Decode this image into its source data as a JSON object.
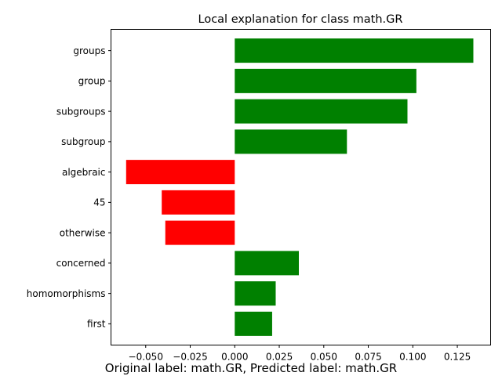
{
  "chart_data": {
    "type": "bar",
    "orientation": "horizontal",
    "title": "Local explanation for class math.GR",
    "caption": "Original label: math.GR, Predicted label: math.GR",
    "xlabel": "",
    "ylabel": "",
    "categories": [
      "groups",
      "group",
      "subgroups",
      "subgroup",
      "algebraic",
      "45",
      "otherwise",
      "concerned",
      "homomorphisms",
      "first"
    ],
    "values": [
      0.134,
      0.102,
      0.097,
      0.063,
      -0.061,
      -0.041,
      -0.039,
      0.036,
      0.023,
      0.021
    ],
    "xlim": [
      -0.0695,
      0.1437
    ],
    "xticks": [
      -0.05,
      -0.025,
      0.0,
      0.025,
      0.05,
      0.075,
      0.1,
      0.125
    ],
    "xtick_labels": [
      "−0.050",
      "−0.025",
      "0.000",
      "0.025",
      "0.050",
      "0.075",
      "0.100",
      "0.125"
    ],
    "grid": false,
    "colors": {
      "positive": "#008000",
      "negative": "#ff0000"
    }
  }
}
